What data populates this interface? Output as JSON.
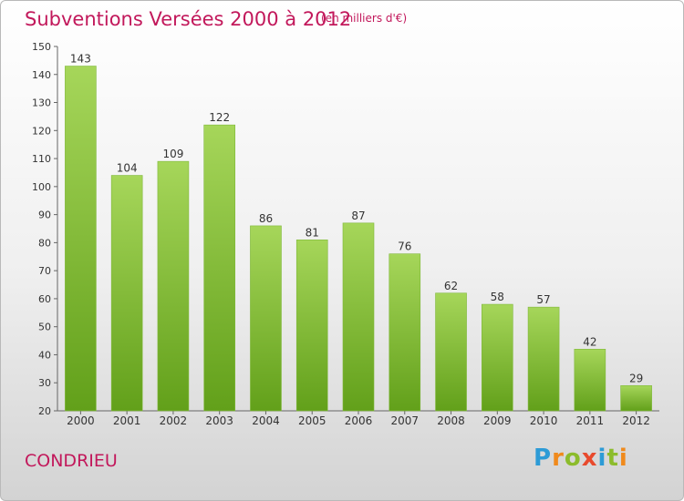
{
  "title": "Subventions Versées 2000 à 2012",
  "subtitle": "(en milliers d'€)",
  "place": "CONDRIEU",
  "brand": "Proxiti",
  "colors": {
    "title": "#c2185b",
    "bar_top": "#a6d65a",
    "bar_bottom": "#62a01a"
  },
  "chart_data": {
    "type": "bar",
    "categories": [
      "2000",
      "2001",
      "2002",
      "2003",
      "2004",
      "2005",
      "2006",
      "2007",
      "2008",
      "2009",
      "2010",
      "2011",
      "2012"
    ],
    "values": [
      143,
      104,
      109,
      122,
      86,
      81,
      87,
      76,
      62,
      58,
      57,
      42,
      29
    ],
    "ylim": [
      20,
      150
    ],
    "yticks": [
      20,
      30,
      40,
      50,
      60,
      70,
      80,
      90,
      100,
      110,
      120,
      130,
      140,
      150
    ],
    "grid": false
  }
}
